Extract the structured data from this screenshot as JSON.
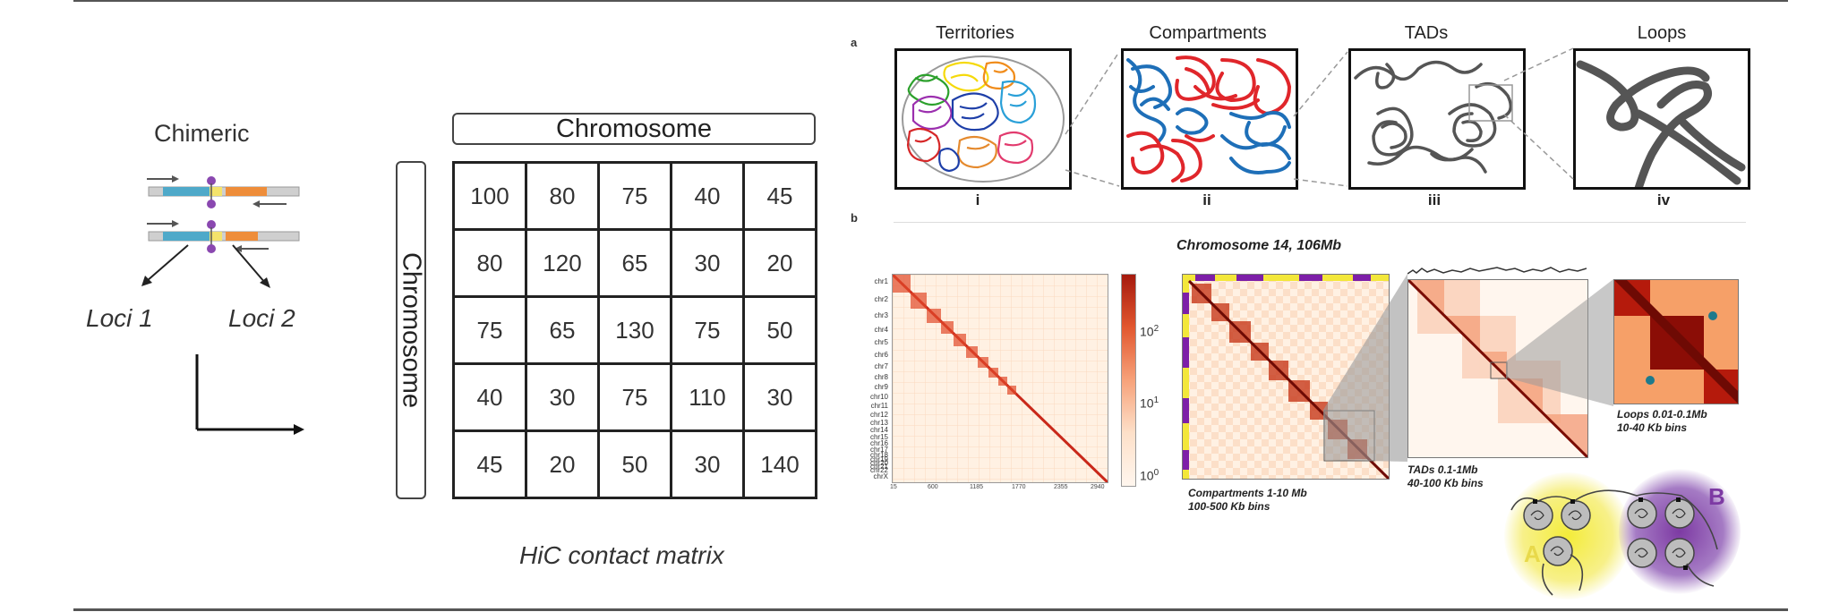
{
  "left": {
    "chimeric_title": "Chimeric",
    "loci_1": "Loci 1",
    "loci_2": "Loci 2",
    "chromosome_top": "Chromosome",
    "chromosome_side": "Chromosome",
    "matrix": [
      [
        "100",
        "80",
        "75",
        "40",
        "45"
      ],
      [
        "80",
        "120",
        "65",
        "30",
        "20"
      ],
      [
        "75",
        "65",
        "130",
        "75",
        "50"
      ],
      [
        "40",
        "30",
        "75",
        "110",
        "30"
      ],
      [
        "45",
        "20",
        "50",
        "30",
        "140"
      ]
    ],
    "caption": "HiC contact matrix"
  },
  "right": {
    "panel_a": "a",
    "panel_b": "b",
    "sections": [
      {
        "title": "Territories",
        "roman": "i"
      },
      {
        "title": "Compartments",
        "roman": "ii"
      },
      {
        "title": "TADs",
        "roman": "iii"
      },
      {
        "title": "Loops",
        "roman": "iv"
      }
    ],
    "genome_chromosomes": [
      "chr1",
      "chr2",
      "chr3",
      "chr4",
      "chr5",
      "chr6",
      "chr7",
      "chr8",
      "chr9",
      "chr10",
      "chr11",
      "chr12",
      "chr13",
      "chr14",
      "chr15",
      "chr16",
      "chr17",
      "chr18",
      "chr19",
      "chr20",
      "chr21",
      "chr22",
      "chrX"
    ],
    "genome_ticks": [
      "15",
      "600",
      "1185",
      "1770",
      "2355",
      "2940"
    ],
    "colorbar_labels": {
      "top_base": "10",
      "top_exp": "2",
      "mid_base": "10",
      "mid_exp": "1",
      "bot_base": "10",
      "bot_exp": "0"
    },
    "chr14_title": "Chromosome 14, 106Mb",
    "compartments_label_1": "Compartments 1-10 Mb",
    "compartments_label_2": "100-500 Kb bins",
    "tads_label_1": "TADs 0.1-1Mb",
    "tads_label_2": "40-100 Kb bins",
    "loops_label_1": "Loops 0.01-0.1Mb",
    "loops_label_2": "10-40 Kb bins",
    "compartment_a": "A",
    "compartment_b": "B",
    "colors": {
      "territory_colors": [
        "#2ca02c",
        "#f5d90a",
        "#9b2fae",
        "#1e3fa8",
        "#2aa0d8",
        "#d62728",
        "#e58a2e",
        "#e23b6e"
      ],
      "compartment_red": "#e0262b",
      "compartment_blue": "#1e6fb8",
      "chromatin_gray": "#555555",
      "heatmap_dark": "#8b0d06",
      "heatmap_light": "#fff1e3",
      "compartment_a_glow": "#f4ec3a",
      "compartment_b_glow": "#7d3aa3"
    }
  }
}
